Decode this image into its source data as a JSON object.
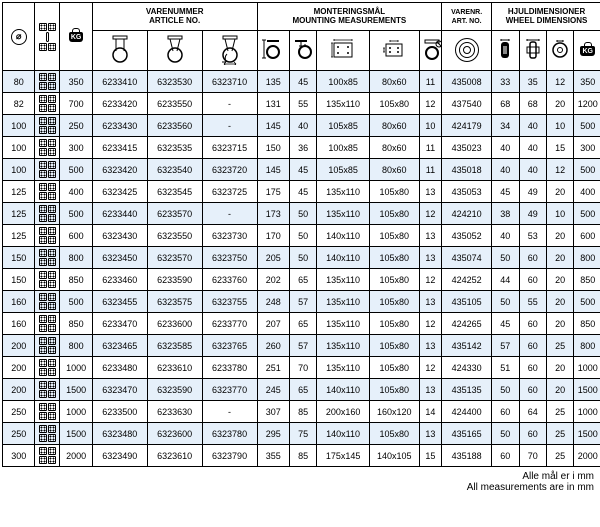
{
  "headers": {
    "art": "VARENUMMER\nARTICLE NO.",
    "mount": "MONTERINGSMÅL\nMOUNTING MEASUREMENTS",
    "artno": "VARENR.\nART. NO.",
    "wheel": "HJULDIMENSIONER\nWHEEL DIMENSIONS"
  },
  "footer": {
    "l1": "Alle mål er i mm",
    "l2": "All measurements are in mm"
  },
  "rows": [
    {
      "s": 1,
      "d": "80",
      "k": "350",
      "a1": "6233410",
      "a2": "6323530",
      "a3": "6323710",
      "m1": "135",
      "m2": "45",
      "m3": "100x85",
      "m4": "80x60",
      "m5": "11",
      "an": "435008",
      "w1": "33",
      "w2": "35",
      "w3": "12",
      "w4": "350"
    },
    {
      "s": 0,
      "d": "82",
      "k": "700",
      "a1": "6233420",
      "a2": "6233550",
      "a3": "-",
      "m1": "131",
      "m2": "55",
      "m3": "135x110",
      "m4": "105x80",
      "m5": "12",
      "an": "437540",
      "w1": "68",
      "w2": "68",
      "w3": "20",
      "w4": "1200"
    },
    {
      "s": 1,
      "d": "100",
      "k": "250",
      "a1": "6233430",
      "a2": "6233560",
      "a3": "-",
      "m1": "145",
      "m2": "40",
      "m3": "105x85",
      "m4": "80x60",
      "m5": "10",
      "an": "424179",
      "w1": "34",
      "w2": "40",
      "w3": "10",
      "w4": "500"
    },
    {
      "s": 0,
      "d": "100",
      "k": "300",
      "a1": "6233415",
      "a2": "6323535",
      "a3": "6323715",
      "m1": "150",
      "m2": "36",
      "m3": "100x85",
      "m4": "80x60",
      "m5": "11",
      "an": "435023",
      "w1": "40",
      "w2": "40",
      "w3": "15",
      "w4": "300"
    },
    {
      "s": 1,
      "d": "100",
      "k": "500",
      "a1": "6323420",
      "a2": "6323540",
      "a3": "6323720",
      "m1": "145",
      "m2": "45",
      "m3": "105x85",
      "m4": "80x60",
      "m5": "11",
      "an": "435018",
      "w1": "40",
      "w2": "40",
      "w3": "12",
      "w4": "500"
    },
    {
      "s": 0,
      "d": "125",
      "k": "400",
      "a1": "6323425",
      "a2": "6323545",
      "a3": "6323725",
      "m1": "175",
      "m2": "45",
      "m3": "135x110",
      "m4": "105x80",
      "m5": "13",
      "an": "435053",
      "w1": "45",
      "w2": "49",
      "w3": "20",
      "w4": "400"
    },
    {
      "s": 1,
      "d": "125",
      "k": "500",
      "a1": "6233440",
      "a2": "6233570",
      "a3": "-",
      "m1": "173",
      "m2": "50",
      "m3": "135x110",
      "m4": "105x80",
      "m5": "12",
      "an": "424210",
      "w1": "38",
      "w2": "49",
      "w3": "10",
      "w4": "500"
    },
    {
      "s": 0,
      "d": "125",
      "k": "600",
      "a1": "6323430",
      "a2": "6323550",
      "a3": "6323730",
      "m1": "170",
      "m2": "50",
      "m3": "140x110",
      "m4": "105x80",
      "m5": "13",
      "an": "435052",
      "w1": "40",
      "w2": "53",
      "w3": "20",
      "w4": "600"
    },
    {
      "s": 1,
      "d": "150",
      "k": "800",
      "a1": "6323450",
      "a2": "6323570",
      "a3": "6323750",
      "m1": "205",
      "m2": "50",
      "m3": "140x110",
      "m4": "105x80",
      "m5": "13",
      "an": "435074",
      "w1": "50",
      "w2": "60",
      "w3": "20",
      "w4": "800"
    },
    {
      "s": 0,
      "d": "150",
      "k": "850",
      "a1": "6233460",
      "a2": "6233590",
      "a3": "6233760",
      "m1": "202",
      "m2": "65",
      "m3": "135x110",
      "m4": "105x80",
      "m5": "12",
      "an": "424252",
      "w1": "44",
      "w2": "60",
      "w3": "20",
      "w4": "850"
    },
    {
      "s": 1,
      "d": "160",
      "k": "500",
      "a1": "6323455",
      "a2": "6323575",
      "a3": "6323755",
      "m1": "248",
      "m2": "57",
      "m3": "135x110",
      "m4": "105x80",
      "m5": "13",
      "an": "435105",
      "w1": "50",
      "w2": "55",
      "w3": "20",
      "w4": "500"
    },
    {
      "s": 0,
      "d": "160",
      "k": "850",
      "a1": "6233470",
      "a2": "6233600",
      "a3": "6233770",
      "m1": "207",
      "m2": "65",
      "m3": "135x110",
      "m4": "105x80",
      "m5": "12",
      "an": "424265",
      "w1": "45",
      "w2": "60",
      "w3": "20",
      "w4": "850"
    },
    {
      "s": 1,
      "d": "200",
      "k": "800",
      "a1": "6323465",
      "a2": "6323585",
      "a3": "6323765",
      "m1": "260",
      "m2": "57",
      "m3": "135x110",
      "m4": "105x80",
      "m5": "13",
      "an": "435142",
      "w1": "57",
      "w2": "60",
      "w3": "25",
      "w4": "800"
    },
    {
      "s": 0,
      "d": "200",
      "k": "1000",
      "a1": "6233480",
      "a2": "6233610",
      "a3": "6233780",
      "m1": "251",
      "m2": "70",
      "m3": "135x110",
      "m4": "105x80",
      "m5": "12",
      "an": "424330",
      "w1": "51",
      "w2": "60",
      "w3": "20",
      "w4": "1000"
    },
    {
      "s": 1,
      "d": "200",
      "k": "1500",
      "a1": "6323470",
      "a2": "6323590",
      "a3": "6323770",
      "m1": "245",
      "m2": "65",
      "m3": "140x110",
      "m4": "105x80",
      "m5": "13",
      "an": "435135",
      "w1": "50",
      "w2": "60",
      "w3": "20",
      "w4": "1500"
    },
    {
      "s": 0,
      "d": "250",
      "k": "1000",
      "a1": "6233500",
      "a2": "6233630",
      "a3": "-",
      "m1": "307",
      "m2": "85",
      "m3": "200x160",
      "m4": "160x120",
      "m5": "14",
      "an": "424400",
      "w1": "60",
      "w2": "64",
      "w3": "25",
      "w4": "1000"
    },
    {
      "s": 1,
      "d": "250",
      "k": "1500",
      "a1": "6323480",
      "a2": "6323600",
      "a3": "6323780",
      "m1": "295",
      "m2": "75",
      "m3": "140x110",
      "m4": "105x80",
      "m5": "13",
      "an": "435165",
      "w1": "50",
      "w2": "60",
      "w3": "25",
      "w4": "1500"
    },
    {
      "s": 0,
      "d": "300",
      "k": "2000",
      "a1": "6323490",
      "a2": "6323610",
      "a3": "6323790",
      "m1": "355",
      "m2": "85",
      "m3": "175x145",
      "m4": "140x105",
      "m5": "15",
      "an": "435188",
      "w1": "60",
      "w2": "70",
      "w3": "25",
      "w4": "2000"
    }
  ]
}
